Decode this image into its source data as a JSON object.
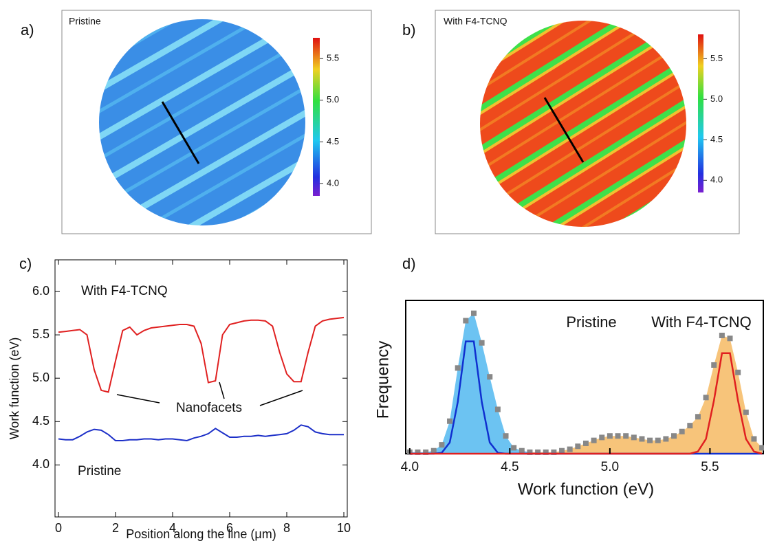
{
  "maps": [
    {
      "label": "a)",
      "annotation": "Pristine",
      "colorbar": {
        "lim": [
          3.85,
          5.75
        ],
        "ticks": [
          {
            "value": 4,
            "label": "4.0"
          },
          {
            "value": 4.5,
            "label": "4.5"
          },
          {
            "value": 5,
            "label": "5.0"
          },
          {
            "value": 5.5,
            "label": "5.5"
          }
        ]
      }
    },
    {
      "label": "b)",
      "annotation": "With F4-TCNQ",
      "colorbar": {
        "lim": [
          3.85,
          5.8
        ],
        "ticks": [
          {
            "value": 4,
            "label": "4.0"
          },
          {
            "value": 4.5,
            "label": "4.5"
          },
          {
            "value": 5,
            "label": "5.0"
          },
          {
            "value": 5.5,
            "label": "5.5"
          }
        ]
      }
    }
  ],
  "chart_data": [
    {
      "type": "line",
      "label": "c)",
      "x_label": "Position along the line (μm)",
      "y_label": "Work function (eV)",
      "annotations": [
        "Nanofacets"
      ],
      "x": [
        0,
        0.25,
        0.5,
        0.75,
        1,
        1.25,
        1.5,
        1.75,
        2,
        2.25,
        2.5,
        2.75,
        3,
        3.25,
        3.5,
        3.75,
        4,
        4.25,
        4.5,
        4.75,
        5,
        5.25,
        5.5,
        5.75,
        6,
        6.25,
        6.5,
        6.75,
        7,
        7.25,
        7.5,
        7.75,
        8,
        8.25,
        8.5,
        8.75,
        9,
        9.25,
        9.5,
        9.75,
        10
      ],
      "series": [
        {
          "name": "With F4-TCNQ",
          "color": "#e02020",
          "values": [
            5.53,
            5.54,
            5.55,
            5.56,
            5.5,
            5.1,
            4.86,
            4.84,
            5.2,
            5.55,
            5.59,
            5.5,
            5.55,
            5.58,
            5.59,
            5.6,
            5.61,
            5.62,
            5.62,
            5.6,
            5.4,
            4.95,
            4.97,
            5.5,
            5.62,
            5.64,
            5.66,
            5.67,
            5.67,
            5.66,
            5.6,
            5.3,
            5.05,
            4.96,
            4.96,
            5.3,
            5.6,
            5.66,
            5.68,
            5.69,
            5.7
          ]
        },
        {
          "name": "Pristine",
          "color": "#1c2fc8",
          "values": [
            4.3,
            4.29,
            4.29,
            4.33,
            4.38,
            4.41,
            4.4,
            4.35,
            4.28,
            4.28,
            4.29,
            4.29,
            4.3,
            4.3,
            4.29,
            4.3,
            4.3,
            4.29,
            4.28,
            4.31,
            4.33,
            4.36,
            4.42,
            4.37,
            4.32,
            4.32,
            4.33,
            4.33,
            4.34,
            4.33,
            4.34,
            4.35,
            4.36,
            4.4,
            4.46,
            4.44,
            4.38,
            4.36,
            4.35,
            4.35,
            4.35
          ]
        }
      ],
      "xlim": [
        -0.12,
        10.12
      ],
      "xticks": [
        0,
        2,
        4,
        6,
        8,
        10
      ],
      "ylim": [
        3.4,
        6.365
      ],
      "yticks": [
        {
          "value": 4,
          "label": "4.0"
        },
        {
          "value": 4.5,
          "label": "4.5"
        },
        {
          "value": 5,
          "label": "5.0"
        },
        {
          "value": 5.5,
          "label": "5.5"
        },
        {
          "value": 6,
          "label": "6.0"
        }
      ]
    },
    {
      "type": "histogram",
      "label": "d)",
      "x_label": "Work function (eV)",
      "y_label": "Frequency",
      "x": [
        4,
        4.04,
        4.08,
        4.12,
        4.16,
        4.2,
        4.24,
        4.28,
        4.32,
        4.36,
        4.4,
        4.44,
        4.48,
        4.52,
        4.56,
        4.6,
        4.64,
        4.68,
        4.72,
        4.76,
        4.8,
        4.84,
        4.88,
        4.92,
        4.96,
        5,
        5.04,
        5.08,
        5.12,
        5.16,
        5.2,
        5.24,
        5.28,
        5.32,
        5.36,
        5.4,
        5.44,
        5.48,
        5.52,
        5.56,
        5.6,
        5.64,
        5.68,
        5.72,
        5.76
      ],
      "points": {
        "color": "#888888",
        "values": [
          1,
          1,
          1,
          2,
          6,
          22,
          58,
          90,
          95,
          75,
          52,
          30,
          12,
          4,
          2,
          1,
          1,
          1,
          1,
          2,
          3,
          5,
          7,
          9,
          11,
          12,
          12,
          12,
          11,
          10,
          9,
          9,
          10,
          12,
          15,
          19,
          25,
          38,
          60,
          80,
          78,
          55,
          28,
          10,
          4
        ]
      },
      "series": [
        {
          "name": "Pristine",
          "color": "#6cc3f2",
          "values": [
            1,
            1,
            1,
            2,
            6,
            22,
            58,
            90,
            95,
            75,
            52,
            30,
            12,
            4,
            2,
            1,
            null,
            null,
            null,
            null,
            null,
            null,
            null,
            null,
            null,
            null,
            null,
            null,
            null,
            null,
            null,
            null,
            null,
            null,
            null,
            null,
            null,
            null,
            null,
            null,
            null,
            null,
            null,
            null,
            null
          ]
        },
        {
          "name": "With F4-TCNQ",
          "color": "#f7c47a",
          "values": [
            null,
            null,
            null,
            null,
            null,
            null,
            null,
            null,
            null,
            null,
            null,
            null,
            null,
            null,
            null,
            1,
            1,
            1,
            1,
            2,
            3,
            5,
            7,
            9,
            11,
            12,
            12,
            12,
            11,
            10,
            9,
            9,
            10,
            12,
            15,
            19,
            25,
            38,
            60,
            80,
            78,
            55,
            28,
            10,
            4
          ]
        }
      ],
      "fits": [
        {
          "color": "#1030d0",
          "values": [
            0,
            0,
            0,
            0,
            0.6,
            7.6,
            35,
            76,
            76,
            35,
            7.6,
            0.6,
            0,
            0,
            0,
            0,
            0,
            0,
            0,
            0,
            0,
            0,
            0,
            0,
            0,
            0,
            0,
            0,
            0,
            0,
            0,
            0,
            0,
            0,
            0,
            0,
            0,
            0,
            0,
            0,
            0,
            0,
            0,
            0,
            0
          ]
        },
        {
          "color": "#e02020",
          "values": [
            0,
            0,
            0,
            0,
            0,
            0,
            0,
            0,
            0,
            0,
            0,
            0,
            0,
            0,
            0,
            0,
            0,
            0,
            0,
            0,
            0,
            0,
            0,
            0,
            0,
            0,
            0,
            0,
            0,
            0,
            0,
            0,
            0,
            0,
            0,
            0,
            1.5,
            10,
            36,
            68,
            68,
            36,
            10,
            1.5,
            0
          ]
        }
      ],
      "xlim": [
        3.98,
        5.77
      ],
      "xticks": [
        {
          "value": 4,
          "label": "4.0"
        },
        {
          "value": 4.5,
          "label": "4.5"
        },
        {
          "value": 5,
          "label": "5.0"
        },
        {
          "value": 5.5,
          "label": "5.5"
        }
      ],
      "ylim": [
        0,
        100
      ]
    }
  ]
}
